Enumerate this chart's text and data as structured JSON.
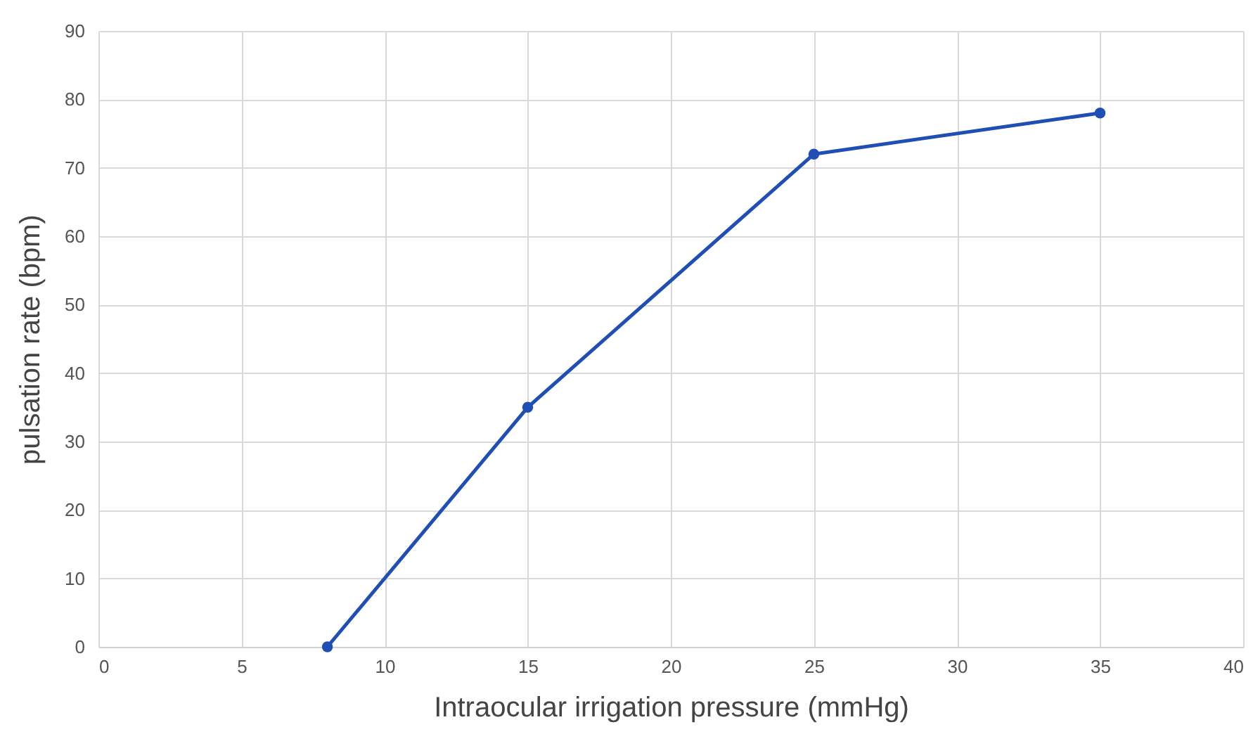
{
  "chart_data": {
    "type": "line",
    "xlabel": "Intraocular irrigation pressure (mmHg)",
    "ylabel": "pulsation rate (bpm)",
    "x": [
      8,
      15,
      25,
      35
    ],
    "series": [
      {
        "color": "#1f4fb4",
        "values": [
          0,
          35,
          72,
          78
        ]
      }
    ],
    "xlim": [
      0,
      40
    ],
    "xticks": [
      0,
      5,
      10,
      15,
      20,
      25,
      30,
      35,
      40
    ],
    "ylim": [
      0,
      90
    ],
    "yticks": [
      0,
      10,
      20,
      30,
      40,
      50,
      60,
      70,
      80,
      90
    ],
    "grid": true,
    "marker": "circle",
    "line_style": "solid"
  }
}
